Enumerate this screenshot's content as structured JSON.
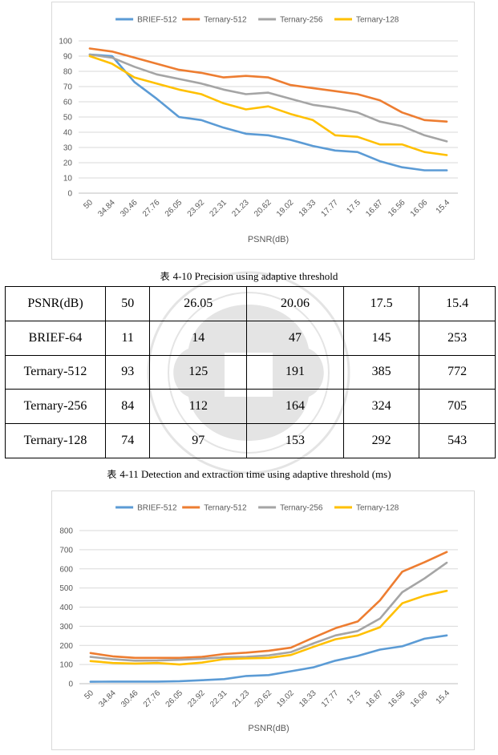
{
  "charts": [
    {
      "id": "chart1",
      "chart_data": {
        "type": "line",
        "categories": [
          "50",
          "34.84",
          "30.46",
          "27.76",
          "26.05",
          "23.92",
          "22.31",
          "21.23",
          "20.62",
          "19.02",
          "18.33",
          "17.77",
          "17.5",
          "16.87",
          "16.56",
          "16.06",
          "15.4"
        ],
        "series": [
          {
            "name": "BRIEF-512",
            "color": "#5b9bd5",
            "values": [
              91,
              90,
              73,
              62,
              50,
              48,
              43,
              39,
              38,
              35,
              31,
              28,
              27,
              21,
              17,
              15,
              15
            ]
          },
          {
            "name": "Ternary-512",
            "color": "#ed7d31",
            "values": [
              95,
              93,
              89,
              85,
              81,
              79,
              76,
              77,
              76,
              71,
              69,
              67,
              65,
              61,
              53,
              48,
              47
            ]
          },
          {
            "name": "Ternary-256",
            "color": "#a5a5a5",
            "values": [
              91,
              89,
              83,
              78,
              75,
              72,
              68,
              65,
              66,
              62,
              58,
              56,
              53,
              47,
              44,
              38,
              34
            ]
          },
          {
            "name": "Ternary-128",
            "color": "#ffc000",
            "values": [
              90,
              85,
              76,
              72,
              68,
              65,
              59,
              55,
              57,
              52,
              48,
              38,
              37,
              32,
              32,
              27,
              25
            ]
          }
        ],
        "xlabel": "PSNR(dB)",
        "ylabel": "",
        "ylim": [
          0,
          100
        ],
        "yticks": [
          0,
          10,
          20,
          30,
          40,
          50,
          60,
          70,
          80,
          90,
          100
        ],
        "grid": true,
        "legend": "top"
      }
    },
    {
      "id": "chart2",
      "chart_data": {
        "type": "line",
        "categories": [
          "50",
          "34.84",
          "30.46",
          "27.76",
          "26.05",
          "23.92",
          "22.31",
          "21.23",
          "20.62",
          "19.02",
          "18.33",
          "17.77",
          "17.5",
          "16.87",
          "16.56",
          "16.06",
          "15.4"
        ],
        "series": [
          {
            "name": "BRIEF-512",
            "color": "#5b9bd5",
            "values": [
              10,
              11,
              11,
              11,
              13,
              18,
              24,
              40,
              45,
              65,
              85,
              120,
              145,
              178,
              195,
              235,
              252
            ]
          },
          {
            "name": "Ternary-512",
            "color": "#ed7d31",
            "values": [
              160,
              143,
              135,
              135,
              135,
              140,
              155,
              162,
              172,
              188,
              240,
              290,
              325,
              435,
              585,
              635,
              688
            ]
          },
          {
            "name": "Ternary-256",
            "color": "#a5a5a5",
            "values": [
              140,
              128,
              120,
              121,
              125,
              130,
              138,
              140,
              148,
              165,
              210,
              252,
              275,
              340,
              478,
              550,
              632
            ]
          },
          {
            "name": "Ternary-128",
            "color": "#ffc000",
            "values": [
              118,
              108,
              105,
              108,
              100,
              110,
              128,
              132,
              135,
              150,
              192,
              232,
              252,
              295,
              420,
              460,
              485
            ]
          }
        ],
        "xlabel": "PSNR(dB)",
        "ylabel": "",
        "ylim": [
          0,
          800
        ],
        "yticks": [
          0,
          100,
          200,
          300,
          400,
          500,
          600,
          700,
          800
        ],
        "grid": true,
        "legend": "top"
      }
    }
  ],
  "captions": {
    "caption1_glyph": "表",
    "caption1": "4-10 Precision using adaptive threshold",
    "caption2_glyph": "表",
    "caption2": "4-11 Detection and extraction time using adaptive threshold (ms)"
  },
  "table": {
    "header": [
      "PSNR(dB)",
      "50",
      "26.05",
      "20.06",
      "17.5",
      "15.4"
    ],
    "rows": [
      [
        "BRIEF-64",
        "11",
        "14",
        "47",
        "145",
        "253"
      ],
      [
        "Ternary-512",
        "93",
        "125",
        "191",
        "385",
        "772"
      ],
      [
        "Ternary-256",
        "84",
        "112",
        "164",
        "324",
        "705"
      ],
      [
        "Ternary-128",
        "74",
        "97",
        "153",
        "292",
        "543"
      ]
    ]
  }
}
